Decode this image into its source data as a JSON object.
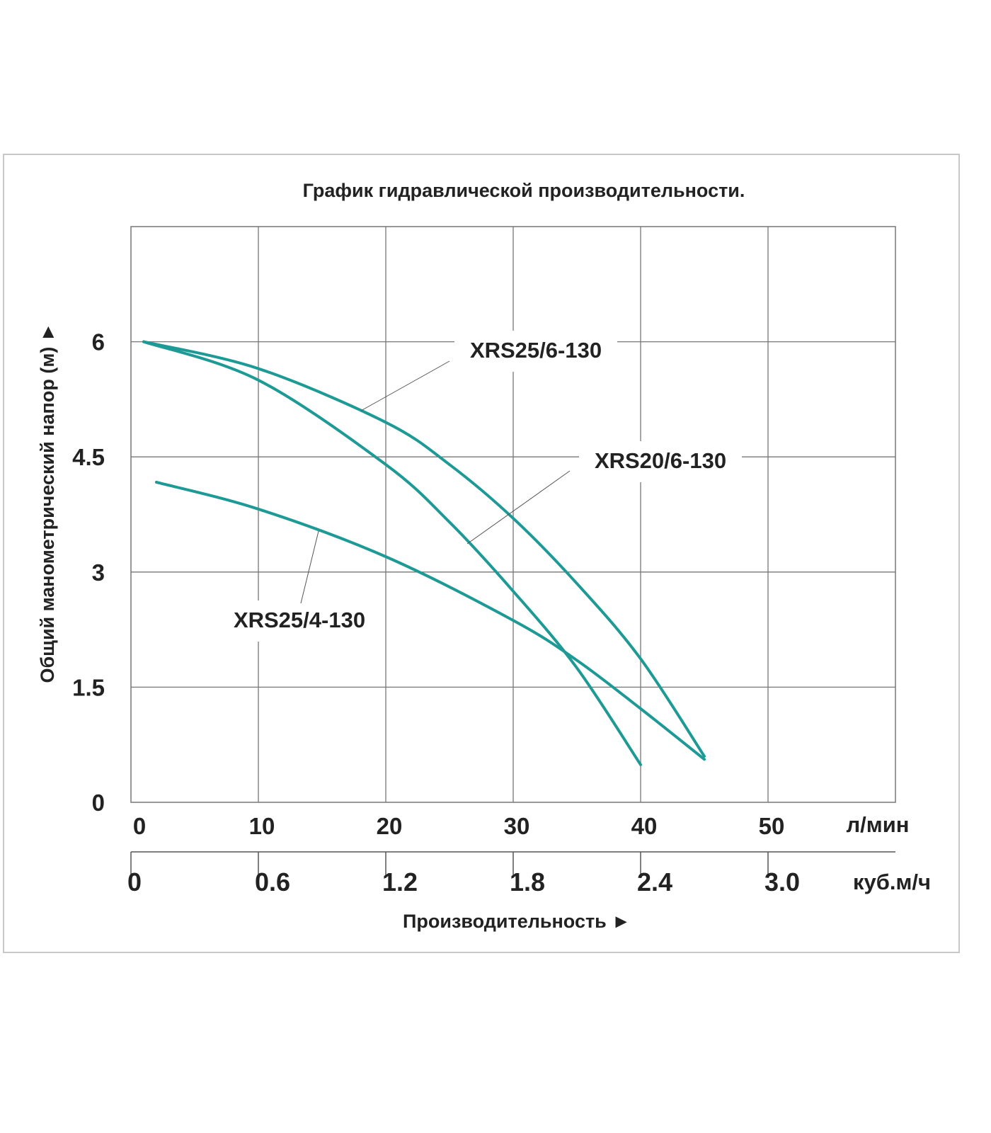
{
  "chart_data": {
    "type": "line",
    "title": "График гидравлической производительности.",
    "xlabel": "Производительность ►",
    "ylabel": "Общий манометрический напор (м) ►",
    "xunit": "л/мин",
    "x2unit": "куб.м/ч",
    "xlim": [
      0,
      60
    ],
    "ylim": [
      0,
      7.5
    ],
    "grid": true,
    "x_ticks": [
      0,
      10,
      20,
      30,
      40,
      50
    ],
    "x_tick_labels": [
      "0",
      "10",
      "20",
      "30",
      "40",
      "50"
    ],
    "x2_ticks": [
      0,
      10,
      20,
      30,
      40,
      50
    ],
    "x2_tick_labels": [
      "0",
      "0.6",
      "1.2",
      "1.8",
      "2.4",
      "3.0"
    ],
    "y_ticks": [
      0,
      1.5,
      3,
      4.5,
      6
    ],
    "y_tick_labels": [
      "0",
      "1.5",
      "3",
      "4.5",
      "6"
    ],
    "series_color": "#1e9a96",
    "series": [
      {
        "name": "XRS25/6-130",
        "x": [
          1,
          10,
          20,
          25,
          30,
          35,
          40,
          45
        ],
        "y": [
          6,
          5.65,
          4.95,
          4.4,
          3.7,
          2.85,
          1.87,
          0.6
        ]
      },
      {
        "name": "XRS20/6-130",
        "x": [
          1,
          10,
          20,
          25,
          30,
          35,
          40
        ],
        "y": [
          6,
          5.5,
          4.4,
          3.65,
          2.75,
          1.75,
          0.49
        ]
      },
      {
        "name": "XRS25/4-130",
        "x": [
          2,
          10,
          20,
          30,
          35,
          40,
          45
        ],
        "y": [
          4.17,
          3.82,
          3.2,
          2.37,
          1.85,
          1.22,
          0.56
        ]
      }
    ]
  }
}
